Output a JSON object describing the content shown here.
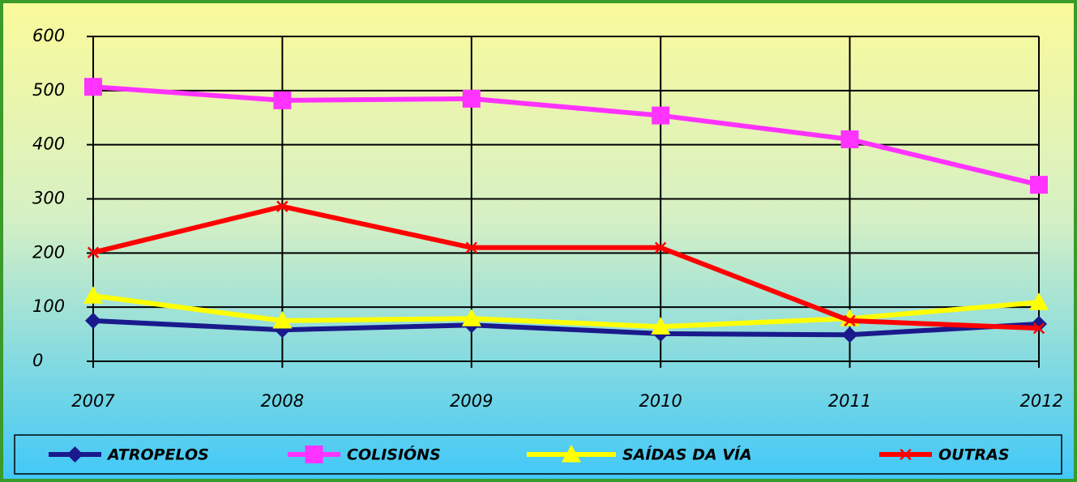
{
  "chart_data": {
    "type": "line",
    "categories": [
      "2007",
      "2008",
      "2009",
      "2010",
      "2011",
      "2012"
    ],
    "series": [
      {
        "name": "ATROPELOS",
        "color": "#1a1a8c",
        "marker": "diamond",
        "values": [
          75,
          58,
          67,
          51,
          49,
          69
        ]
      },
      {
        "name": "COLISIÓNS",
        "color": "#ff33ff",
        "marker": "square",
        "values": [
          507,
          482,
          485,
          454,
          410,
          326
        ]
      },
      {
        "name": "SAÍDAS DA VÍA",
        "color": "#ffff00",
        "marker": "triangle",
        "values": [
          121,
          75,
          79,
          64,
          79,
          109
        ]
      },
      {
        "name": "OUTRAS",
        "color": "#ff0000",
        "marker": "x",
        "values": [
          201,
          286,
          210,
          210,
          75,
          61
        ]
      }
    ],
    "ylim": [
      0,
      600
    ],
    "yticks": [
      0,
      100,
      200,
      300,
      400,
      500,
      600
    ],
    "grid": true,
    "legend": "bottom"
  }
}
